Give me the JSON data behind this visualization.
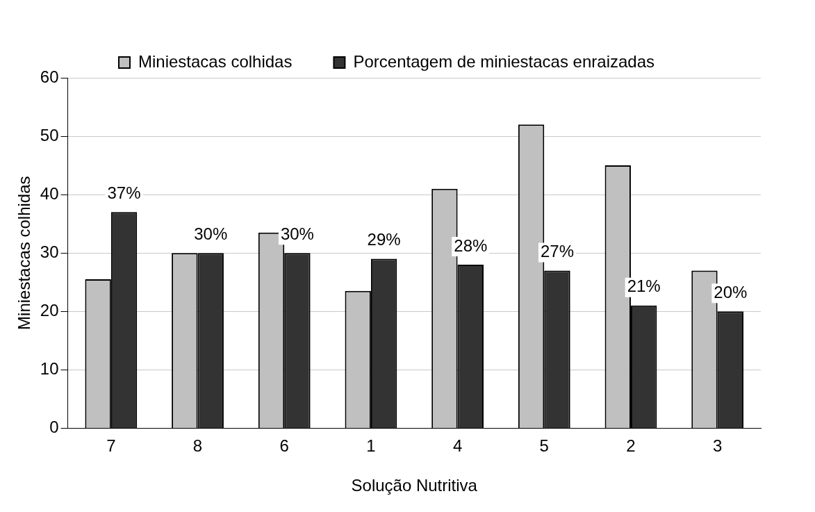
{
  "chart_data": {
    "type": "bar",
    "xlabel": "Solução Nutritiva",
    "ylabel": "Miniestacas colhidas",
    "categories": [
      "7",
      "8",
      "6",
      "1",
      "4",
      "5",
      "2",
      "3"
    ],
    "series": [
      {
        "name": "Miniestacas colhidas",
        "color": "#c0c0c0",
        "values": [
          25.5,
          30,
          33.5,
          23.5,
          41,
          52,
          45,
          27
        ]
      },
      {
        "name": "Porcentagem de miniestacas enraizadas",
        "color": "#333333",
        "values": [
          37,
          30,
          30,
          29,
          28,
          27,
          21,
          20
        ],
        "value_labels": [
          "37%",
          "30%",
          "30%",
          "29%",
          "28%",
          "27%",
          "21%",
          "20%"
        ]
      }
    ],
    "ylim": [
      0,
      60
    ],
    "yticks": [
      0,
      10,
      20,
      30,
      40,
      50,
      60
    ],
    "grid": "y",
    "legend": "top"
  }
}
